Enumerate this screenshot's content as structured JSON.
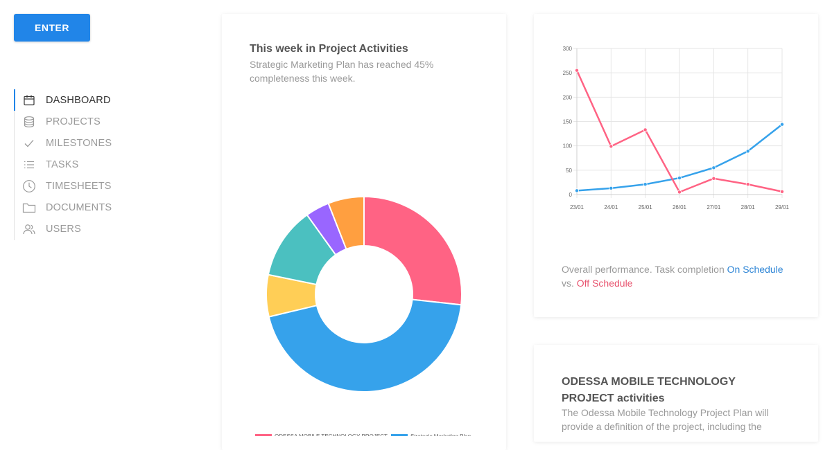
{
  "header": {
    "enter_label": "ENTER"
  },
  "sidebar": {
    "items": [
      {
        "label": "DASHBOARD",
        "icon": "calendar-icon",
        "active": true
      },
      {
        "label": "PROJECTS",
        "icon": "database-icon",
        "active": false
      },
      {
        "label": "MILESTONES",
        "icon": "check-icon",
        "active": false
      },
      {
        "label": "TASKS",
        "icon": "list-icon",
        "active": false
      },
      {
        "label": "TIMESHEETS",
        "icon": "clock-icon",
        "active": false
      },
      {
        "label": "DOCUMENTS",
        "icon": "folder-icon",
        "active": false
      },
      {
        "label": "USERS",
        "icon": "users-icon",
        "active": false
      }
    ]
  },
  "activities_card": {
    "title": "This week in Project Activities",
    "subtitle_line1": "Strategic Marketing Plan has reached 45%",
    "subtitle_line2": "completeness this week.",
    "legend_items": [
      {
        "label": "ODESSA MOBILE TECHNOLOGY PROJECT",
        "color": "#ff6384"
      },
      {
        "label": "Strategic Marketing Plan",
        "color": "#36a2eb"
      }
    ]
  },
  "performance_card": {
    "caption_prefix": "Overall performance. Task completion ",
    "on_schedule_label": "On Schedule",
    "caption_middle": "vs. ",
    "off_schedule_label": "Off Schedule"
  },
  "odessa_card": {
    "title_line1": "ODESSA MOBILE TECHNOLOGY",
    "title_line2": "PROJECT activities",
    "text_line1": "The Odessa Mobile Technology Project Plan will",
    "text_line2": "provide a definition of the project, including the"
  },
  "chart_data": [
    {
      "type": "pie",
      "title": "This week in Project Activities",
      "donut": true,
      "slices": [
        {
          "label": "ODESSA MOBILE TECHNOLOGY PROJECT",
          "value": 27,
          "color": "#ff6384"
        },
        {
          "label": "Strategic Marketing Plan",
          "value": 45,
          "color": "#36a2eb"
        },
        {
          "label": "",
          "value": 7,
          "color": "#ffce56"
        },
        {
          "label": "",
          "value": 12,
          "color": "#4bc0c0"
        },
        {
          "label": "",
          "value": 4,
          "color": "#9966ff"
        },
        {
          "label": "",
          "value": 6,
          "color": "#ff9f40"
        }
      ]
    },
    {
      "type": "line",
      "categories": [
        "23/01",
        "24/01",
        "25/01",
        "26/01",
        "27/01",
        "28/01",
        "29/01"
      ],
      "series": [
        {
          "name": "On Schedule",
          "color": "#36a2eb",
          "values": [
            8,
            13,
            21,
            34,
            55,
            89,
            144
          ]
        },
        {
          "name": "Off Schedule",
          "color": "#ff6384",
          "values": [
            255,
            99,
            133,
            5,
            33,
            21,
            6
          ]
        }
      ],
      "ylim": [
        0,
        300
      ],
      "yticks": [
        0,
        50,
        100,
        150,
        200,
        250,
        300
      ],
      "grid": true
    }
  ]
}
